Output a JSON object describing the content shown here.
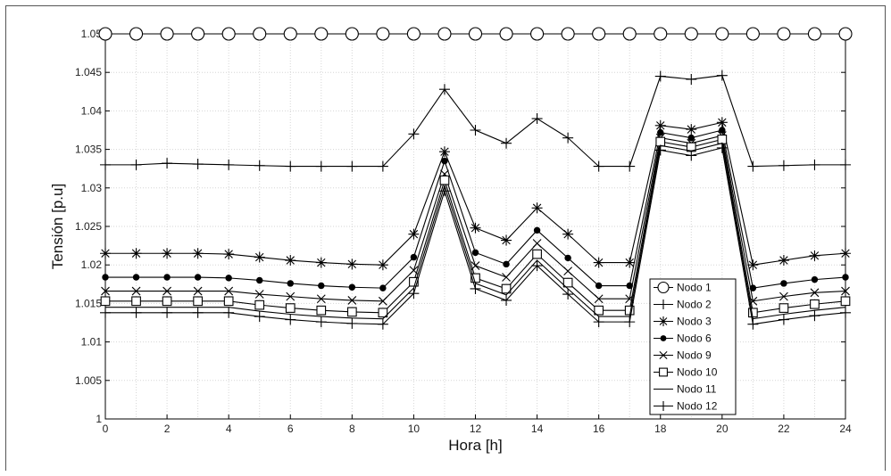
{
  "chart_data": {
    "type": "line",
    "xlabel": "Hora [h]",
    "ylabel": "Tensión [p.u]",
    "xlim": [
      0,
      24
    ],
    "ylim": [
      1.0,
      1.05
    ],
    "grid": true,
    "legend_position": "lower-right",
    "x_ticks": [
      0,
      2,
      4,
      6,
      8,
      10,
      12,
      14,
      16,
      18,
      20,
      22,
      24
    ],
    "x_tick_labels": [
      "0",
      "2",
      "4",
      "6",
      "8",
      "10",
      "12",
      "14",
      "16",
      "18",
      "20",
      "22",
      "24"
    ],
    "y_ticks": [
      1.0,
      1.005,
      1.01,
      1.015,
      1.02,
      1.025,
      1.03,
      1.035,
      1.04,
      1.045,
      1.05
    ],
    "y_tick_labels": [
      "1",
      "1.005",
      "1.01",
      "1.015",
      "1.02",
      "1.025",
      "1.03",
      "1.035",
      "1.04",
      "1.045",
      "1.05"
    ],
    "x": [
      0,
      1,
      2,
      3,
      4,
      5,
      6,
      7,
      8,
      9,
      10,
      11,
      12,
      13,
      14,
      15,
      16,
      17,
      18,
      19,
      20,
      21,
      22,
      23,
      24
    ],
    "series": [
      {
        "name": "Nodo 1",
        "marker": "circle",
        "values": [
          1.05,
          1.05,
          1.05,
          1.05,
          1.05,
          1.05,
          1.05,
          1.05,
          1.05,
          1.05,
          1.05,
          1.05,
          1.05,
          1.05,
          1.05,
          1.05,
          1.05,
          1.05,
          1.05,
          1.05,
          1.05,
          1.05,
          1.05,
          1.05,
          1.05
        ]
      },
      {
        "name": "Nodo 2",
        "marker": "plus",
        "values": [
          1.033,
          1.033,
          1.0332,
          1.0331,
          1.033,
          1.0329,
          1.0328,
          1.0328,
          1.0328,
          1.0328,
          1.037,
          1.0428,
          1.0375,
          1.0358,
          1.039,
          1.0365,
          1.0328,
          1.0328,
          1.0445,
          1.0441,
          1.0446,
          1.0328,
          1.0329,
          1.033,
          1.033
        ]
      },
      {
        "name": "Nodo 3",
        "marker": "asterisk",
        "values": [
          1.0215,
          1.0215,
          1.0215,
          1.0215,
          1.0214,
          1.021,
          1.0206,
          1.0203,
          1.0201,
          1.02,
          1.024,
          1.0347,
          1.0248,
          1.0232,
          1.0274,
          1.024,
          1.0203,
          1.0203,
          1.0381,
          1.0376,
          1.0385,
          1.02,
          1.0206,
          1.0212,
          1.0215
        ]
      },
      {
        "name": "Nodo 6",
        "marker": "dot",
        "values": [
          1.0184,
          1.0184,
          1.0184,
          1.0184,
          1.0183,
          1.018,
          1.0176,
          1.0173,
          1.0171,
          1.017,
          1.021,
          1.0335,
          1.0216,
          1.0201,
          1.0245,
          1.0209,
          1.0173,
          1.0173,
          1.0372,
          1.0365,
          1.0375,
          1.017,
          1.0176,
          1.0181,
          1.0184
        ]
      },
      {
        "name": "Nodo 9",
        "marker": "cross",
        "values": [
          1.0166,
          1.0166,
          1.0166,
          1.0166,
          1.0166,
          1.0162,
          1.0159,
          1.0156,
          1.0154,
          1.0153,
          1.0193,
          1.0318,
          1.0199,
          1.0184,
          1.0228,
          1.0192,
          1.0156,
          1.0156,
          1.0365,
          1.0358,
          1.0368,
          1.0153,
          1.0159,
          1.0164,
          1.0166
        ]
      },
      {
        "name": "Nodo 10",
        "marker": "square",
        "values": [
          1.0153,
          1.0153,
          1.0153,
          1.0153,
          1.0153,
          1.0148,
          1.0144,
          1.0141,
          1.0139,
          1.0138,
          1.0178,
          1.031,
          1.0183,
          1.0169,
          1.0214,
          1.0177,
          1.0141,
          1.0141,
          1.036,
          1.0353,
          1.0363,
          1.0138,
          1.0144,
          1.0149,
          1.0153
        ]
      },
      {
        "name": "Nodo 11",
        "marker": "none",
        "values": [
          1.0145,
          1.0145,
          1.0145,
          1.0145,
          1.0145,
          1.014,
          1.0136,
          1.0133,
          1.0131,
          1.013,
          1.017,
          1.0303,
          1.0176,
          1.0161,
          1.0206,
          1.0169,
          1.0133,
          1.0133,
          1.0355,
          1.0348,
          1.0358,
          1.013,
          1.0136,
          1.0141,
          1.0145
        ]
      },
      {
        "name": "Nodo 12",
        "marker": "plus",
        "values": [
          1.0138,
          1.0138,
          1.0138,
          1.0138,
          1.0138,
          1.0133,
          1.0129,
          1.0126,
          1.0124,
          1.0123,
          1.0163,
          1.0296,
          1.0169,
          1.0154,
          1.0199,
          1.0162,
          1.0126,
          1.0126,
          1.0349,
          1.0342,
          1.0352,
          1.0123,
          1.0129,
          1.0134,
          1.0138
        ]
      }
    ]
  }
}
